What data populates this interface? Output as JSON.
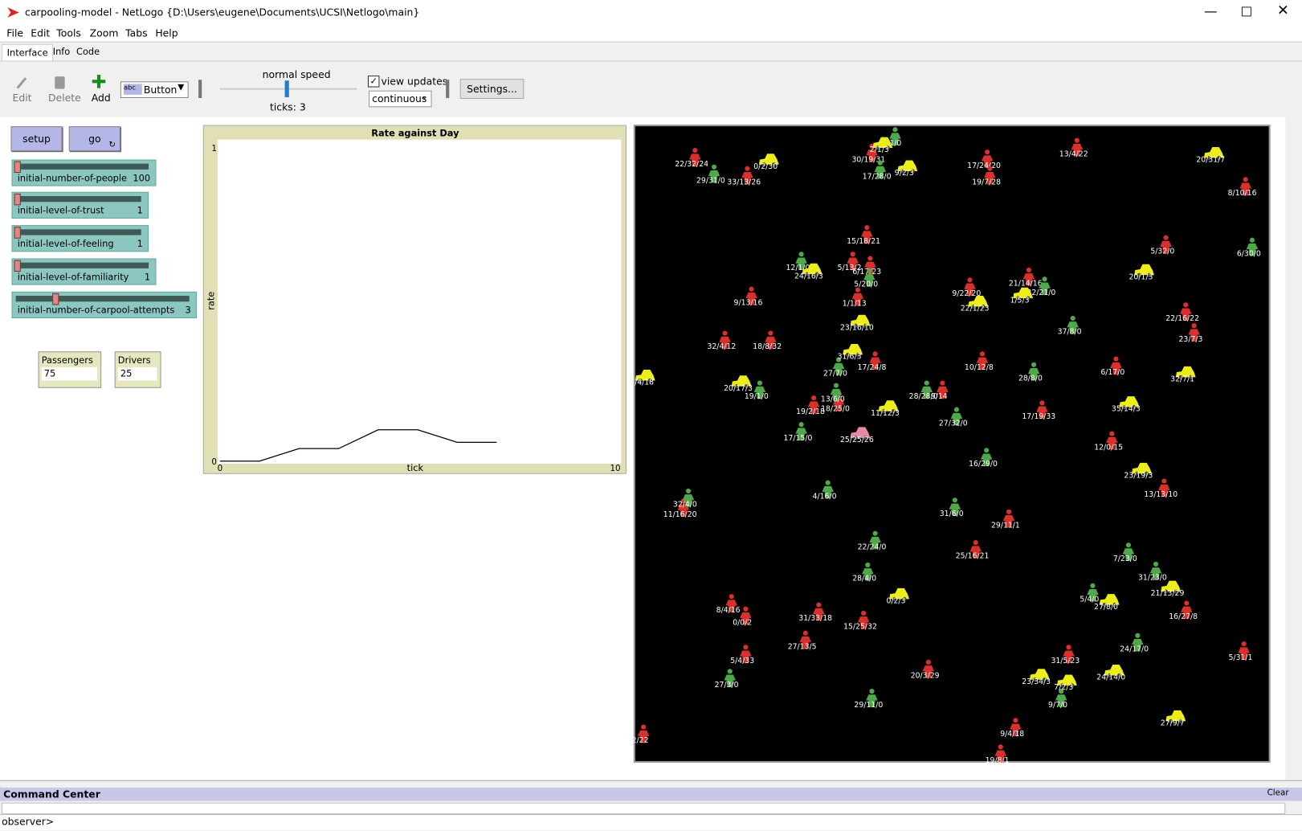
{
  "window": {
    "title": "carpooling-model - NetLogo {D:\\Users\\eugene\\Documents\\UCSI\\Netlogo\\main}"
  },
  "menu": [
    "File",
    "Edit",
    "Tools",
    "Zoom",
    "Tabs",
    "Help"
  ],
  "tabs": [
    "Interface",
    "Info",
    "Code"
  ],
  "toolbar": {
    "edit": "Edit",
    "delete": "Delete",
    "add": "Add",
    "widget_type": "Button",
    "speed": "normal speed",
    "ticks": "ticks: 3",
    "view_updates": "view updates",
    "update_mode": "continuous",
    "settings": "Settings..."
  },
  "buttons": [
    "setup",
    "go"
  ],
  "sliders": [
    {
      "name": "initial-number-of-people",
      "value": 100
    },
    {
      "name": "initial-level-of-trust",
      "value": 1
    },
    {
      "name": "initial-level-of-feeling",
      "value": 1
    },
    {
      "name": "initial-level-of-familiarity",
      "value": 1
    },
    {
      "name": "initial-number-of-carpool-attempts",
      "value": 3
    }
  ],
  "monitors": [
    {
      "name": "Passengers",
      "value": 75
    },
    {
      "name": "Drivers",
      "value": 25
    }
  ],
  "chart_data": {
    "type": "line",
    "title": "Rate against Day",
    "xlabel": "tick",
    "ylabel": "rate",
    "x": [
      0,
      1,
      2,
      3,
      4,
      5,
      6,
      7
    ],
    "values": [
      0,
      0,
      0.04,
      0.04,
      0.1,
      0.1,
      0.06,
      0.06
    ],
    "color": "#000000",
    "xlim": [
      0,
      10
    ],
    "ylim": [
      0,
      1
    ],
    "xticks": [
      0,
      10
    ],
    "yticks": [
      0,
      1
    ]
  },
  "world": {
    "agents": [
      {
        "label": "22/32/24",
        "shape": "person",
        "color": "#d8302a"
      },
      {
        "label": "33/13/26",
        "shape": "person",
        "color": "#d8302a"
      },
      {
        "label": "17/24/20",
        "shape": "person",
        "color": "#d8302a"
      },
      {
        "label": "13/4/22",
        "shape": "person",
        "color": "#d8302a"
      },
      {
        "label": "8/10/16",
        "shape": "person",
        "color": "#d8302a"
      },
      {
        "label": "19/7/28",
        "shape": "person",
        "color": "#d8302a"
      },
      {
        "label": "15/18/21",
        "shape": "person",
        "color": "#d8302a"
      },
      {
        "label": "5/13/2",
        "shape": "person",
        "color": "#d8302a"
      },
      {
        "label": "6/17/23",
        "shape": "person",
        "color": "#d8302a"
      },
      {
        "label": "5/32/0",
        "shape": "person",
        "color": "#d8302a"
      },
      {
        "label": "9/13/16",
        "shape": "person",
        "color": "#d8302a"
      },
      {
        "label": "9/22/20",
        "shape": "person",
        "color": "#d8302a"
      },
      {
        "label": "21/14/16",
        "shape": "person",
        "color": "#d8302a"
      },
      {
        "label": "1/1/13",
        "shape": "person",
        "color": "#d8302a"
      },
      {
        "label": "22/16/22",
        "shape": "person",
        "color": "#d8302a"
      },
      {
        "label": "23/7/3",
        "shape": "person",
        "color": "#d8302a"
      },
      {
        "label": "32/4/12",
        "shape": "person",
        "color": "#d8302a"
      },
      {
        "label": "18/8/32",
        "shape": "person",
        "color": "#d8302a"
      },
      {
        "label": "17/24/8",
        "shape": "person",
        "color": "#d8302a"
      },
      {
        "label": "10/12/8",
        "shape": "person",
        "color": "#d8302a"
      },
      {
        "label": "6/17/0",
        "shape": "person",
        "color": "#d8302a"
      },
      {
        "label": "9/14",
        "shape": "person",
        "color": "#d8302a"
      },
      {
        "label": "19/2/18",
        "shape": "person",
        "color": "#d8302a"
      },
      {
        "label": "17/19/33",
        "shape": "person",
        "color": "#d8302a"
      },
      {
        "label": "12/0/15",
        "shape": "person",
        "color": "#d8302a"
      },
      {
        "label": "13/13/10",
        "shape": "person",
        "color": "#d8302a"
      },
      {
        "label": "11/16/20",
        "shape": "person",
        "color": "#d8302a"
      },
      {
        "label": "29/11/1",
        "shape": "person",
        "color": "#d8302a"
      },
      {
        "label": "25/16/21",
        "shape": "person",
        "color": "#d8302a"
      },
      {
        "label": "8/4/16",
        "shape": "person",
        "color": "#d8302a"
      },
      {
        "label": "0/0/2",
        "shape": "person",
        "color": "#d8302a"
      },
      {
        "label": "31/33/18",
        "shape": "person",
        "color": "#d8302a"
      },
      {
        "label": "15/25/32",
        "shape": "person",
        "color": "#d8302a"
      },
      {
        "label": "16/27/8",
        "shape": "person",
        "color": "#d8302a"
      },
      {
        "label": "27/13/5",
        "shape": "person",
        "color": "#d8302a"
      },
      {
        "label": "5/4/33",
        "shape": "person",
        "color": "#d8302a"
      },
      {
        "label": "31/5/23",
        "shape": "person",
        "color": "#d8302a"
      },
      {
        "label": "20/3/29",
        "shape": "person",
        "color": "#d8302a"
      },
      {
        "label": "5/31/1",
        "shape": "person",
        "color": "#d8302a"
      },
      {
        "label": "9/4/18",
        "shape": "person",
        "color": "#d8302a"
      },
      {
        "label": "2/22",
        "shape": "person",
        "color": "#d8302a"
      },
      {
        "label": "30/19/31",
        "shape": "person",
        "color": "#d8302a"
      },
      {
        "label": "18/25/0",
        "shape": "person",
        "color": "#d8302a"
      },
      {
        "label": "19/8/1",
        "shape": "person",
        "color": "#d8302a"
      },
      {
        "label": "1/1/0",
        "shape": "person",
        "color": "#4fa84a"
      },
      {
        "label": "29/31/0",
        "shape": "person",
        "color": "#4fa84a"
      },
      {
        "label": "17/28/0",
        "shape": "person",
        "color": "#4fa84a"
      },
      {
        "label": "12/1/0",
        "shape": "person",
        "color": "#4fa84a"
      },
      {
        "label": "5/20/0",
        "shape": "person",
        "color": "#4fa84a"
      },
      {
        "label": "32/21/0",
        "shape": "person",
        "color": "#4fa84a"
      },
      {
        "label": "6/30/0",
        "shape": "person",
        "color": "#4fa84a"
      },
      {
        "label": "37/8/0",
        "shape": "person",
        "color": "#4fa84a"
      },
      {
        "label": "27/7/0",
        "shape": "person",
        "color": "#4fa84a"
      },
      {
        "label": "28/8/0",
        "shape": "person",
        "color": "#4fa84a"
      },
      {
        "label": "19/1/0",
        "shape": "person",
        "color": "#4fa84a"
      },
      {
        "label": "28/28/0",
        "shape": "person",
        "color": "#4fa84a"
      },
      {
        "label": "13/6/0",
        "shape": "person",
        "color": "#4fa84a"
      },
      {
        "label": "27/32/0",
        "shape": "person",
        "color": "#4fa84a"
      },
      {
        "label": "17/15/0",
        "shape": "person",
        "color": "#4fa84a"
      },
      {
        "label": "16/29/0",
        "shape": "person",
        "color": "#4fa84a"
      },
      {
        "label": "32/4/0",
        "shape": "person",
        "color": "#4fa84a"
      },
      {
        "label": "4/16/0",
        "shape": "person",
        "color": "#4fa84a"
      },
      {
        "label": "31/6/0",
        "shape": "person",
        "color": "#4fa84a"
      },
      {
        "label": "22/24/0",
        "shape": "person",
        "color": "#4fa84a"
      },
      {
        "label": "7/23/0",
        "shape": "person",
        "color": "#4fa84a"
      },
      {
        "label": "28/4/0",
        "shape": "person",
        "color": "#4fa84a"
      },
      {
        "label": "31/23/0",
        "shape": "person",
        "color": "#4fa84a"
      },
      {
        "label": "5/4/0",
        "shape": "person",
        "color": "#4fa84a"
      },
      {
        "label": "24/17/0",
        "shape": "person",
        "color": "#4fa84a"
      },
      {
        "label": "27/3/0",
        "shape": "person",
        "color": "#4fa84a"
      },
      {
        "label": "29/11/0",
        "shape": "person",
        "color": "#4fa84a"
      },
      {
        "label": "9/7/0",
        "shape": "person",
        "color": "#4fa84a"
      },
      {
        "label": "0/2/30",
        "shape": "car",
        "color": "#eded1c"
      },
      {
        "label": "9/2/3",
        "shape": "car",
        "color": "#eded1c"
      },
      {
        "label": "20/31/7",
        "shape": "car",
        "color": "#eded1c"
      },
      {
        "label": "24/16/3",
        "shape": "car",
        "color": "#eded1c"
      },
      {
        "label": "20/1/3",
        "shape": "car",
        "color": "#eded1c"
      },
      {
        "label": "22/1/23",
        "shape": "car",
        "color": "#eded1c"
      },
      {
        "label": "1/5/3",
        "shape": "car",
        "color": "#eded1c"
      },
      {
        "label": "23/16/10",
        "shape": "car",
        "color": "#eded1c"
      },
      {
        "label": "31/6/3",
        "shape": "car",
        "color": "#eded1c"
      },
      {
        "label": "32/7/1",
        "shape": "car",
        "color": "#eded1c"
      },
      {
        "label": "20/17/3",
        "shape": "car",
        "color": "#eded1c"
      },
      {
        "label": "11/12/3",
        "shape": "car",
        "color": "#eded1c"
      },
      {
        "label": "35/14/3",
        "shape": "car",
        "color": "#eded1c"
      },
      {
        "label": "23/19/3",
        "shape": "car",
        "color": "#eded1c"
      },
      {
        "label": "0/2/3",
        "shape": "car",
        "color": "#eded1c"
      },
      {
        "label": "27/8/0",
        "shape": "car",
        "color": "#eded1c"
      },
      {
        "label": "21/13/29",
        "shape": "car",
        "color": "#eded1c"
      },
      {
        "label": "24/14/0",
        "shape": "car",
        "color": "#eded1c"
      },
      {
        "label": "23/34/3",
        "shape": "car",
        "color": "#eded1c"
      },
      {
        "label": "7/2/3",
        "shape": "car",
        "color": "#eded1c"
      },
      {
        "label": "27/9/7",
        "shape": "car",
        "color": "#eded1c"
      },
      {
        "label": "7/4/18",
        "shape": "car",
        "color": "#eded1c"
      },
      {
        "label": "2/1/3",
        "shape": "car",
        "color": "#eded1c"
      },
      {
        "label": "25/25/26",
        "shape": "car",
        "color": "#e88aa6"
      }
    ]
  },
  "command_center": {
    "title": "Command Center",
    "clear": "Clear",
    "prompt": "observer>"
  }
}
